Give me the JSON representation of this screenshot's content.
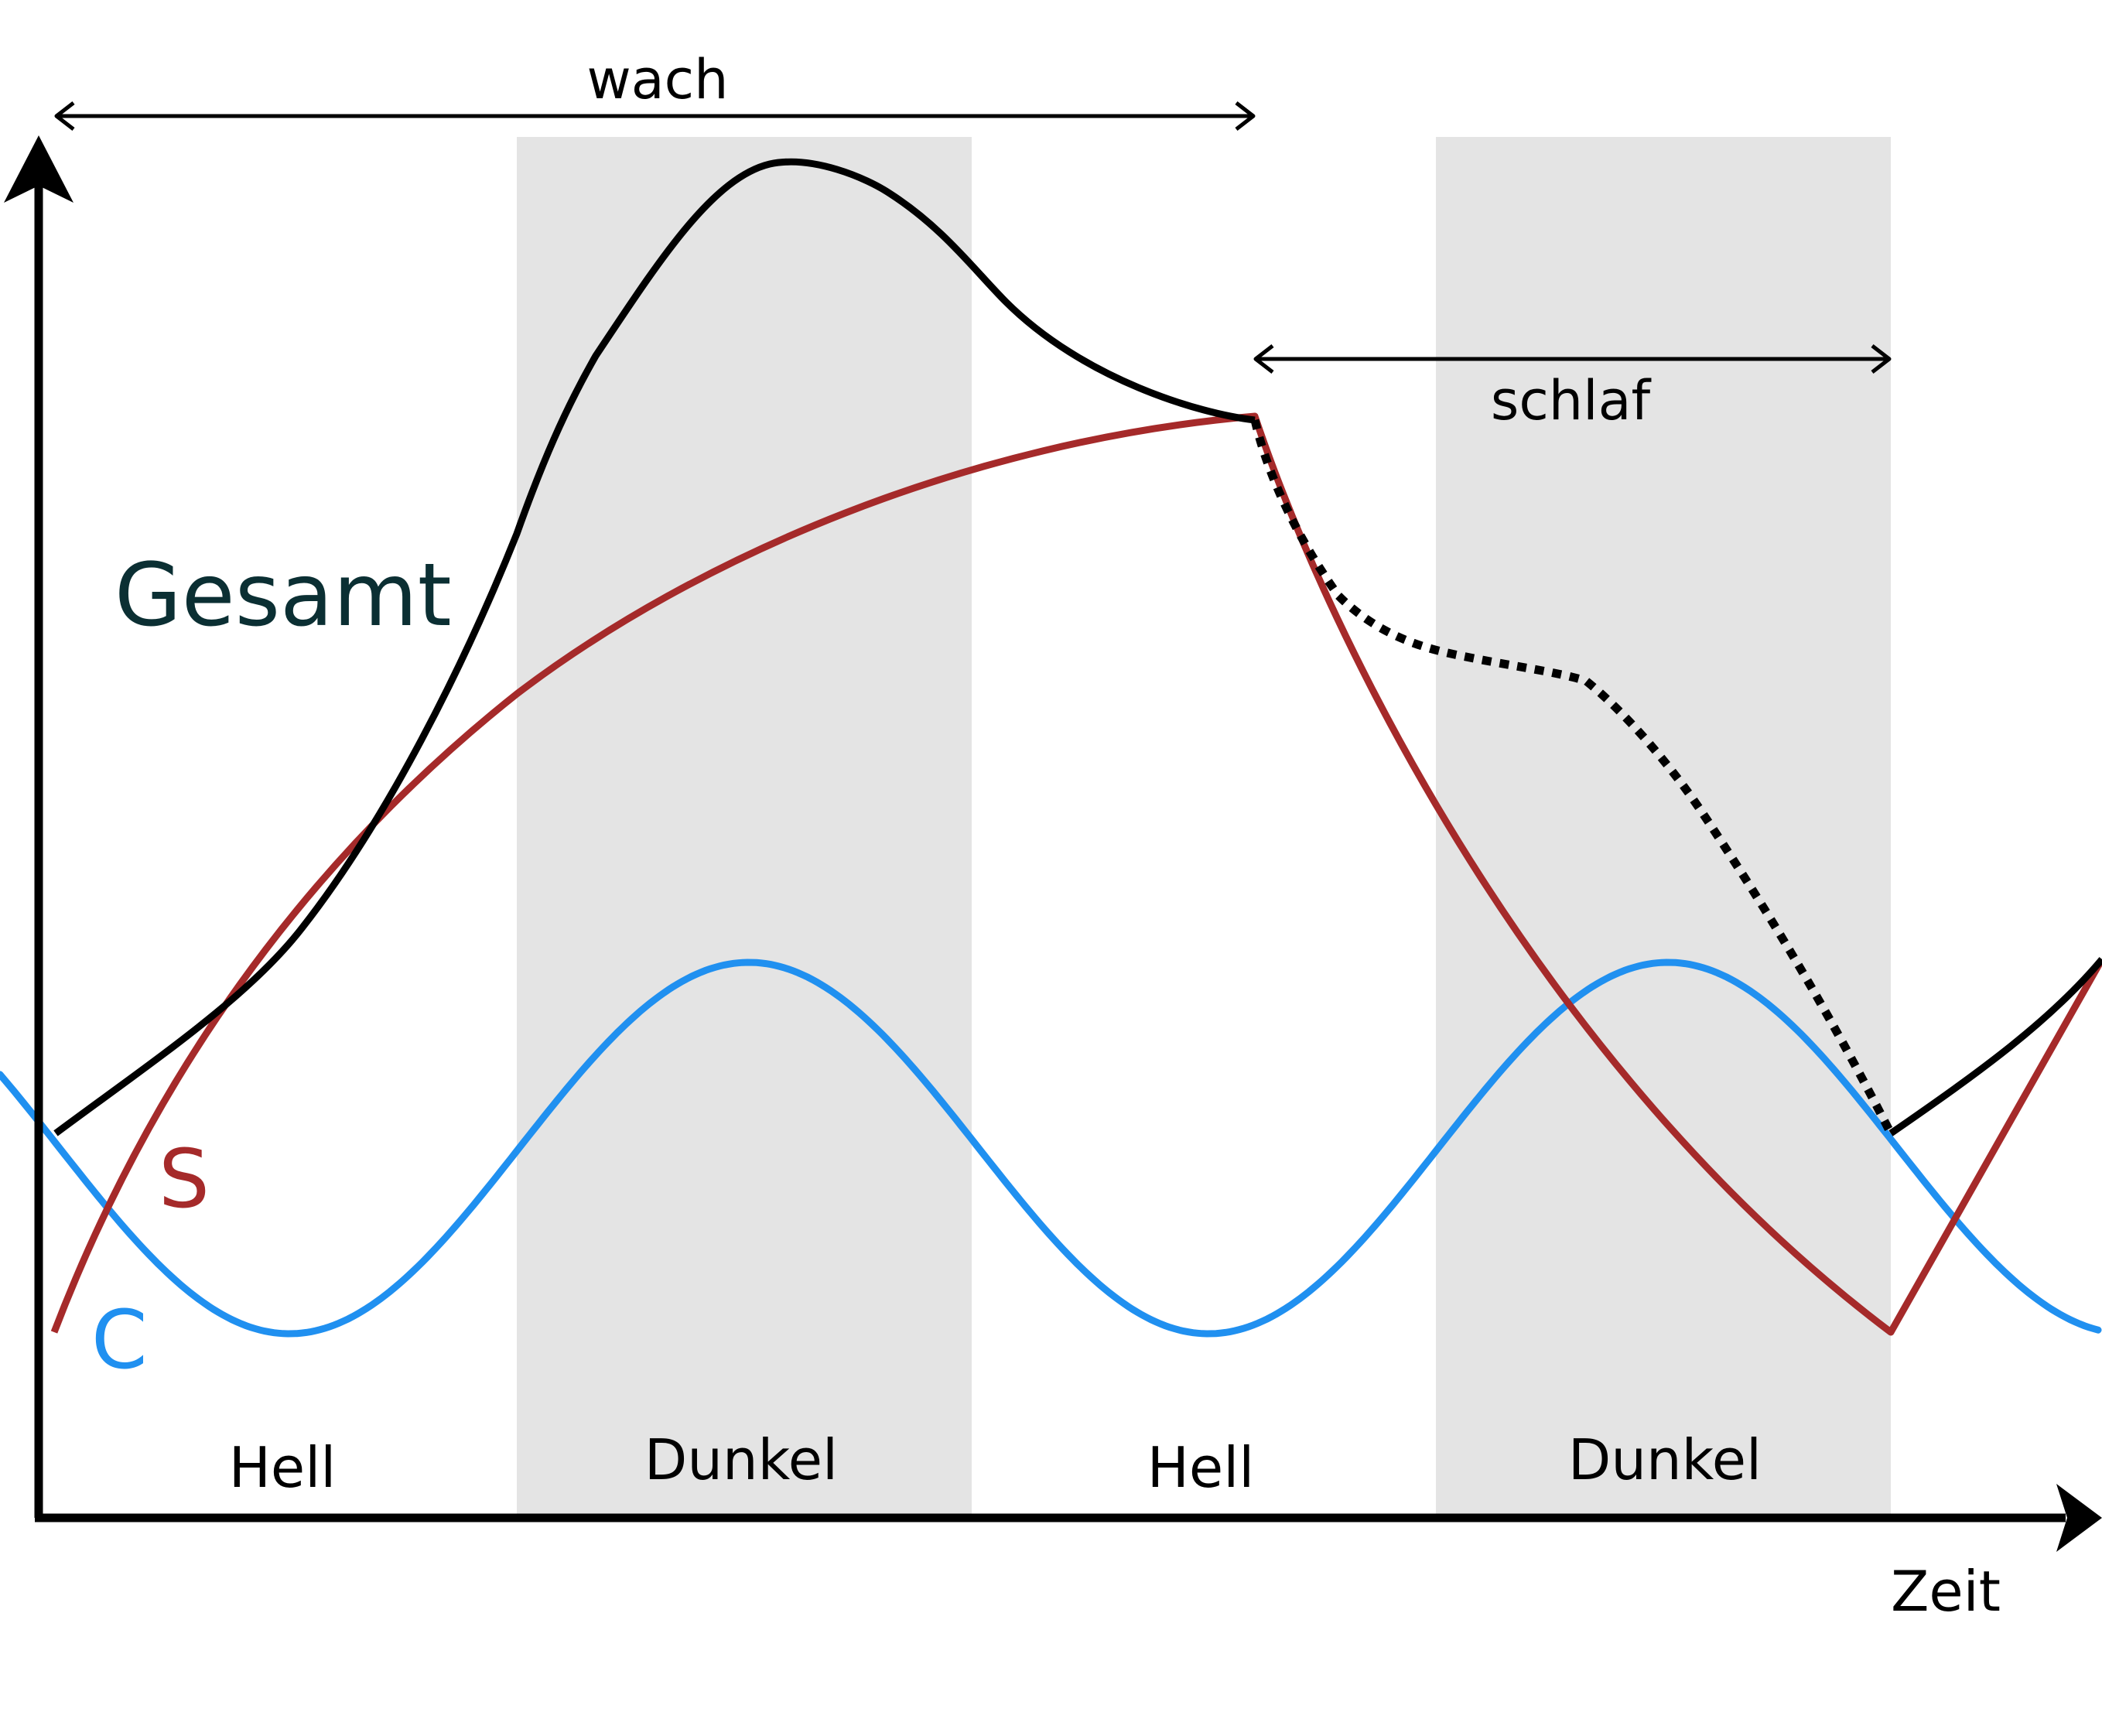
{
  "labels": {
    "wach": "wach",
    "schlaf": "schlaf",
    "gesamt": "Gesamt",
    "s": "S",
    "c": "C",
    "zeit": "Zeit"
  },
  "bands": [
    {
      "label": "Hell",
      "shaded": false
    },
    {
      "label": "Dunkel",
      "shaded": true
    },
    {
      "label": "Hell",
      "shaded": false
    },
    {
      "label": "Dunkel",
      "shaded": true
    }
  ],
  "colors": {
    "axis": "#000000",
    "gesamt": "#000000",
    "gesamt_label": "#0b2f33",
    "s": "#a52a2a",
    "c": "#2090f0",
    "band": "#e4e4e4"
  }
}
